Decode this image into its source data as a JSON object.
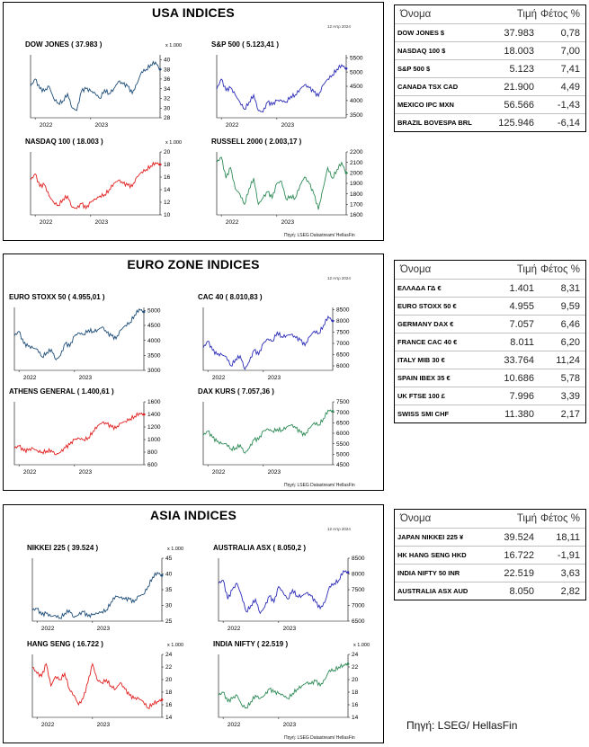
{
  "panels": [
    {
      "title": "USA INDICES",
      "date": "12 Απρ 2024",
      "source": "Πηγή: LSEG Datastream/ HellasFin",
      "top": 2,
      "height": 266
    },
    {
      "title": "EURO ZONE INDICES",
      "date": "12 Απρ 2024",
      "source": "Πηγή: LSEG Datastream/ HellasFin",
      "top": 282,
      "height": 264
    },
    {
      "title": "ASIA INDICES",
      "date": "12 Απρ 2024",
      "source": "Πηγή: LSEG Datastream/ HellasFin",
      "top": 561,
      "height": 266
    }
  ],
  "tables": [
    {
      "header": {
        "name": "Όνομα",
        "price": "Τιμή",
        "ytd": "Φέτος %"
      },
      "rows": [
        {
          "name": "DOW JONES $",
          "price": "37.983",
          "ytd": "0,78"
        },
        {
          "name": "NASDAQ 100 $",
          "price": "18.003",
          "ytd": "7,00"
        },
        {
          "name": "S&P 500 $",
          "price": "5.123",
          "ytd": "7,41"
        },
        {
          "name": "CANADA TSX CAD",
          "price": "21.900",
          "ytd": "4,49"
        },
        {
          "name": "MEXICO IPC MXN",
          "price": "56.566",
          "ytd": "-1,43"
        },
        {
          "name": "BRAZIL BOVESPA BRL",
          "price": "125.946",
          "ytd": "-6,14"
        }
      ]
    },
    {
      "header": {
        "name": "Όνομα",
        "price": "Τιμή",
        "ytd": "Φέτος %"
      },
      "rows": [
        {
          "name": "ΕΛΛΑΔΑ ΓΔ €",
          "price": "1.401",
          "ytd": "8,31"
        },
        {
          "name": "EURO STOXX 50 €",
          "price": "4.955",
          "ytd": "9,59"
        },
        {
          "name": "GERMANY DAX €",
          "price": "7.057",
          "ytd": "6,46"
        },
        {
          "name": "FRANCE CAC 40 €",
          "price": "8.011",
          "ytd": "6,20"
        },
        {
          "name": "ITALY MIB 30 €",
          "price": "33.764",
          "ytd": "11,24"
        },
        {
          "name": "SPAIN IBEX 35 €",
          "price": "10.686",
          "ytd": "5,78"
        },
        {
          "name": "UK FTSE 100 £",
          "price": "7.996",
          "ytd": "3,39"
        },
        {
          "name": "SWISS SMI CHF",
          "price": "11.380",
          "ytd": "2,17"
        }
      ]
    },
    {
      "header": {
        "name": "Όνομα",
        "price": "Τιμή",
        "ytd": "Φέτος %"
      },
      "rows": [
        {
          "name": "JAPAN NIKKEI 225 ¥",
          "price": "39.524",
          "ytd": "18,11"
        },
        {
          "name": "HK HANG SENG HKD",
          "price": "16.722",
          "ytd": "-1,91"
        },
        {
          "name": "INDIA NIFTY 50 INR",
          "price": "22.519",
          "ytd": "3,63"
        },
        {
          "name": "AUSTRALIA ASX AUD",
          "price": "8.050",
          "ytd": "2,82"
        }
      ]
    }
  ],
  "footer_source": "Πηγή: LSEG/ HellasFin",
  "chart_data": [
    {
      "type": "line",
      "title": "DOW JONES ( 37.983 )",
      "unit": "x 1.000",
      "color": "#1f4e79",
      "ylim": [
        28,
        41
      ],
      "yticks": [
        28,
        30,
        32,
        34,
        36,
        38,
        40
      ],
      "xticks": [
        "2022",
        "2023"
      ],
      "x": [
        "2021-10",
        "2022-01",
        "2022-02",
        "2022-03",
        "2022-04",
        "2022-05",
        "2022-06",
        "2022-07",
        "2022-08",
        "2022-09",
        "2022-10",
        "2022-11",
        "2022-12",
        "2023-01",
        "2023-02",
        "2023-03",
        "2023-04",
        "2023-05",
        "2023-06",
        "2023-07",
        "2023-08",
        "2023-09",
        "2023-10",
        "2023-11",
        "2023-12",
        "2024-01",
        "2024-02",
        "2024-03",
        "2024-04"
      ],
      "y": [
        34.5,
        36.0,
        34.0,
        33.5,
        34.5,
        32.0,
        31.0,
        31.5,
        33.0,
        30.0,
        29.5,
        33.5,
        34.0,
        33.5,
        33.0,
        32.0,
        33.8,
        33.0,
        34.0,
        35.5,
        35.0,
        34.5,
        33.0,
        35.0,
        37.5,
        38.0,
        39.0,
        39.5,
        38.0
      ]
    },
    {
      "type": "line",
      "title": "S&P 500 ( 5.123,41 )",
      "unit": "",
      "color": "#2d2db8",
      "ylim": [
        3400,
        5600
      ],
      "yticks": [
        3500,
        4000,
        4500,
        5000,
        5500
      ],
      "xticks": [
        "2022",
        "2023"
      ],
      "x": [
        "2021-10",
        "2022-01",
        "2022-02",
        "2022-03",
        "2022-04",
        "2022-05",
        "2022-06",
        "2022-07",
        "2022-08",
        "2022-09",
        "2022-10",
        "2022-11",
        "2022-12",
        "2023-01",
        "2023-02",
        "2023-03",
        "2023-04",
        "2023-05",
        "2023-06",
        "2023-07",
        "2023-08",
        "2023-09",
        "2023-10",
        "2023-11",
        "2023-12",
        "2024-01",
        "2024-02",
        "2024-03",
        "2024-04"
      ],
      "y": [
        4400,
        4750,
        4350,
        4450,
        4200,
        3950,
        3700,
        3950,
        4200,
        3650,
        3600,
        3950,
        3850,
        4000,
        4000,
        3950,
        4150,
        4200,
        4400,
        4550,
        4450,
        4300,
        4150,
        4550,
        4750,
        4900,
        5100,
        5250,
        5120
      ]
    },
    {
      "type": "line",
      "title": "NASDAQ 100 ( 18.003 )",
      "unit": "x 1.000",
      "color": "#e02020",
      "ylim": [
        10,
        20
      ],
      "yticks": [
        10,
        12,
        14,
        16,
        18,
        20
      ],
      "xticks": [
        "2022",
        "2023"
      ],
      "x": [
        "2021-10",
        "2022-01",
        "2022-02",
        "2022-03",
        "2022-04",
        "2022-05",
        "2022-06",
        "2022-07",
        "2022-08",
        "2022-09",
        "2022-10",
        "2022-11",
        "2022-12",
        "2023-01",
        "2023-02",
        "2023-03",
        "2023-04",
        "2023-05",
        "2023-06",
        "2023-07",
        "2023-08",
        "2023-09",
        "2023-10",
        "2023-11",
        "2023-12",
        "2024-01",
        "2024-02",
        "2024-03",
        "2024-04"
      ],
      "y": [
        15.5,
        16.5,
        14.5,
        14.8,
        13.0,
        12.0,
        11.5,
        12.5,
        13.0,
        11.2,
        11.0,
        11.8,
        11.0,
        12.0,
        12.5,
        13.0,
        13.2,
        14.0,
        15.0,
        15.5,
        15.0,
        14.7,
        14.5,
        16.0,
        16.8,
        17.2,
        17.8,
        18.3,
        18.0
      ]
    },
    {
      "type": "line",
      "title": "RUSSELL 2000 ( 2.003,17 )",
      "unit": "",
      "color": "#2e8b57",
      "ylim": [
        1600,
        2200
      ],
      "yticks": [
        1600,
        1700,
        1800,
        1900,
        2000,
        2100,
        2200
      ],
      "xticks": [
        "2022",
        "2023"
      ],
      "x": [
        "2021-10",
        "2022-01",
        "2022-02",
        "2022-03",
        "2022-04",
        "2022-05",
        "2022-06",
        "2022-07",
        "2022-08",
        "2022-09",
        "2022-10",
        "2022-11",
        "2022-12",
        "2023-01",
        "2023-02",
        "2023-03",
        "2023-04",
        "2023-05",
        "2023-06",
        "2023-07",
        "2023-08",
        "2023-09",
        "2023-10",
        "2023-11",
        "2023-12",
        "2024-01",
        "2024-02",
        "2024-03",
        "2024-04"
      ],
      "y": [
        2100,
        2150,
        1950,
        2050,
        1850,
        1800,
        1700,
        1850,
        1950,
        1700,
        1760,
        1820,
        1760,
        1900,
        1920,
        1750,
        1780,
        1760,
        1880,
        1960,
        1900,
        1800,
        1650,
        1850,
        2050,
        1950,
        2030,
        2100,
        2000
      ]
    },
    {
      "type": "line",
      "title": "EURO STOXX 50 ( 4.955,01 )",
      "unit": "",
      "color": "#1f4e79",
      "ylim": [
        3000,
        5100
      ],
      "yticks": [
        3000,
        3500,
        4000,
        4500,
        5000
      ],
      "xticks": [
        "2022",
        "2023"
      ],
      "x": [
        "2021-10",
        "2022-01",
        "2022-02",
        "2022-03",
        "2022-04",
        "2022-05",
        "2022-06",
        "2022-07",
        "2022-08",
        "2022-09",
        "2022-10",
        "2022-11",
        "2022-12",
        "2023-01",
        "2023-02",
        "2023-03",
        "2023-04",
        "2023-05",
        "2023-06",
        "2023-07",
        "2023-08",
        "2023-09",
        "2023-10",
        "2023-11",
        "2023-12",
        "2024-01",
        "2024-02",
        "2024-03",
        "2024-04"
      ],
      "y": [
        4150,
        4300,
        3900,
        3800,
        3750,
        3700,
        3450,
        3600,
        3700,
        3350,
        3500,
        3900,
        3800,
        4150,
        4250,
        4200,
        4350,
        4300,
        4350,
        4450,
        4250,
        4150,
        4050,
        4350,
        4500,
        4600,
        4850,
        5050,
        4950
      ]
    },
    {
      "type": "line",
      "title": "CAC 40 ( 8.010,83 )",
      "unit": "",
      "color": "#2d2db8",
      "ylim": [
        5800,
        8600
      ],
      "yticks": [
        6000,
        6500,
        7000,
        7500,
        8000,
        8500
      ],
      "xticks": [
        "2022",
        "2023"
      ],
      "x": [
        "2021-10",
        "2022-01",
        "2022-02",
        "2022-03",
        "2022-04",
        "2022-05",
        "2022-06",
        "2022-07",
        "2022-08",
        "2022-09",
        "2022-10",
        "2022-11",
        "2022-12",
        "2023-01",
        "2023-02",
        "2023-03",
        "2023-04",
        "2023-05",
        "2023-06",
        "2023-07",
        "2023-08",
        "2023-09",
        "2023-10",
        "2023-11",
        "2023-12",
        "2024-01",
        "2024-02",
        "2024-03",
        "2024-04"
      ],
      "y": [
        6800,
        7100,
        6700,
        6500,
        6500,
        6400,
        6000,
        6300,
        6450,
        5850,
        6200,
        6700,
        6500,
        7000,
        7200,
        7100,
        7500,
        7300,
        7350,
        7400,
        7250,
        7150,
        6900,
        7300,
        7550,
        7450,
        7800,
        8200,
        8000
      ]
    },
    {
      "type": "line",
      "title": "ATHENS GENERAL ( 1.400,61 )",
      "unit": "",
      "color": "#e02020",
      "ylim": [
        600,
        1600
      ],
      "yticks": [
        600,
        800,
        1000,
        1200,
        1400,
        1600
      ],
      "xticks": [
        "2022",
        "2023"
      ],
      "x": [
        "2021-10",
        "2022-01",
        "2022-02",
        "2022-03",
        "2022-04",
        "2022-05",
        "2022-06",
        "2022-07",
        "2022-08",
        "2022-09",
        "2022-10",
        "2022-11",
        "2022-12",
        "2023-01",
        "2023-02",
        "2023-03",
        "2023-04",
        "2023-05",
        "2023-06",
        "2023-07",
        "2023-08",
        "2023-09",
        "2023-10",
        "2023-11",
        "2023-12",
        "2024-01",
        "2024-02",
        "2024-03",
        "2024-04"
      ],
      "y": [
        860,
        900,
        820,
        830,
        860,
        820,
        800,
        820,
        830,
        760,
        800,
        870,
        920,
        1000,
        1020,
        1000,
        1030,
        1130,
        1220,
        1270,
        1250,
        1200,
        1180,
        1260,
        1290,
        1330,
        1370,
        1420,
        1400
      ]
    },
    {
      "type": "line",
      "title": "DAX KURS ( 7.057,36 )",
      "unit": "",
      "color": "#2e8b57",
      "ylim": [
        4500,
        7500
      ],
      "yticks": [
        4500,
        5000,
        5500,
        6000,
        6500,
        7000,
        7500
      ],
      "xticks": [
        "2022",
        "2023"
      ],
      "x": [
        "2021-10",
        "2022-01",
        "2022-02",
        "2022-03",
        "2022-04",
        "2022-05",
        "2022-06",
        "2022-07",
        "2022-08",
        "2022-09",
        "2022-10",
        "2022-11",
        "2022-12",
        "2023-01",
        "2023-02",
        "2023-03",
        "2023-04",
        "2023-05",
        "2023-06",
        "2023-07",
        "2023-08",
        "2023-09",
        "2023-10",
        "2023-11",
        "2023-12",
        "2024-01",
        "2024-02",
        "2024-03",
        "2024-04"
      ],
      "y": [
        5900,
        6100,
        5800,
        5600,
        5500,
        5500,
        5250,
        5300,
        5450,
        5050,
        5300,
        5700,
        5700,
        6100,
        6200,
        6100,
        6200,
        6150,
        6300,
        6400,
        6250,
        6050,
        5900,
        6250,
        6500,
        6400,
        6700,
        7100,
        7050
      ]
    },
    {
      "type": "line",
      "title": "NIKKEI 225 ( 39.524 )",
      "unit": "x 1.000",
      "color": "#1f4e79",
      "ylim": [
        25,
        45
      ],
      "yticks": [
        25,
        30,
        35,
        40,
        45
      ],
      "xticks": [
        "2022",
        "2023"
      ],
      "x": [
        "2021-10",
        "2022-01",
        "2022-02",
        "2022-03",
        "2022-04",
        "2022-05",
        "2022-06",
        "2022-07",
        "2022-08",
        "2022-09",
        "2022-10",
        "2022-11",
        "2022-12",
        "2023-01",
        "2023-02",
        "2023-03",
        "2023-04",
        "2023-05",
        "2023-06",
        "2023-07",
        "2023-08",
        "2023-09",
        "2023-10",
        "2023-11",
        "2023-12",
        "2024-01",
        "2024-02",
        "2024-03",
        "2024-04"
      ],
      "y": [
        28.5,
        29.0,
        27.0,
        27.5,
        26.5,
        26.8,
        26.0,
        27.5,
        28.5,
        26.2,
        27.0,
        28.0,
        26.5,
        27.0,
        27.5,
        28.0,
        28.5,
        31.0,
        33.0,
        32.5,
        32.0,
        32.0,
        31.0,
        33.0,
        33.5,
        36.0,
        39.0,
        40.5,
        39.5
      ]
    },
    {
      "type": "line",
      "title": "AUSTRALIA ASX ( 8.050,2 )",
      "unit": "",
      "color": "#2d2db8",
      "ylim": [
        6500,
        8500
      ],
      "yticks": [
        6500,
        7000,
        7500,
        8000,
        8500
      ],
      "xticks": [
        "2022",
        "2023"
      ],
      "x": [
        "2021-10",
        "2022-01",
        "2022-02",
        "2022-03",
        "2022-04",
        "2022-05",
        "2022-06",
        "2022-07",
        "2022-08",
        "2022-09",
        "2022-10",
        "2022-11",
        "2022-12",
        "2023-01",
        "2023-02",
        "2023-03",
        "2023-04",
        "2023-05",
        "2023-06",
        "2023-07",
        "2023-08",
        "2023-09",
        "2023-10",
        "2023-11",
        "2023-12",
        "2024-01",
        "2024-02",
        "2024-03",
        "2024-04"
      ],
      "y": [
        7700,
        7800,
        7200,
        7500,
        7700,
        7300,
        6800,
        7000,
        7200,
        6750,
        6950,
        7300,
        7100,
        7600,
        7400,
        7200,
        7500,
        7300,
        7300,
        7400,
        7300,
        7100,
        6900,
        7100,
        7600,
        7700,
        7800,
        8100,
        8050
      ]
    },
    {
      "type": "line",
      "title": "HANG SENG ( 16.722 )",
      "unit": "x 1.000",
      "color": "#e02020",
      "ylim": [
        14,
        24
      ],
      "yticks": [
        14,
        16,
        18,
        20,
        22,
        24
      ],
      "xticks": [
        "2022",
        "2023"
      ],
      "x": [
        "2021-10",
        "2022-01",
        "2022-02",
        "2022-03",
        "2022-04",
        "2022-05",
        "2022-06",
        "2022-07",
        "2022-08",
        "2022-09",
        "2022-10",
        "2022-11",
        "2022-12",
        "2023-01",
        "2023-02",
        "2023-03",
        "2023-04",
        "2023-05",
        "2023-06",
        "2023-07",
        "2023-08",
        "2023-09",
        "2023-10",
        "2023-11",
        "2023-12",
        "2024-01",
        "2024-02",
        "2024-03",
        "2024-04"
      ],
      "y": [
        22.0,
        21.0,
        20.5,
        22.5,
        19.0,
        20.5,
        20.0,
        21.0,
        18.5,
        17.5,
        16.0,
        17.0,
        19.5,
        22.5,
        20.0,
        19.5,
        20.0,
        19.0,
        18.5,
        19.5,
        18.5,
        17.5,
        17.0,
        17.0,
        16.5,
        15.5,
        16.2,
        16.5,
        16.8
      ]
    },
    {
      "type": "line",
      "title": "INDIA NIFTY ( 22.519 )",
      "unit": "x 1.000",
      "color": "#2e8b57",
      "ylim": [
        14,
        24
      ],
      "yticks": [
        14,
        16,
        18,
        20,
        22,
        24
      ],
      "xticks": [
        "2022",
        "2023"
      ],
      "x": [
        "2021-10",
        "2022-01",
        "2022-02",
        "2022-03",
        "2022-04",
        "2022-05",
        "2022-06",
        "2022-07",
        "2022-08",
        "2022-09",
        "2022-10",
        "2022-11",
        "2022-12",
        "2023-01",
        "2023-02",
        "2023-03",
        "2023-04",
        "2023-05",
        "2023-06",
        "2023-07",
        "2023-08",
        "2023-09",
        "2023-10",
        "2023-11",
        "2023-12",
        "2024-01",
        "2024-02",
        "2024-03",
        "2024-04"
      ],
      "y": [
        17.5,
        18.0,
        16.5,
        17.0,
        17.5,
        16.0,
        15.5,
        16.5,
        17.5,
        17.0,
        17.5,
        18.5,
        18.0,
        17.8,
        17.5,
        17.0,
        17.8,
        18.5,
        19.0,
        19.5,
        19.3,
        19.8,
        19.0,
        20.0,
        21.5,
        21.5,
        22.0,
        22.3,
        22.5
      ]
    }
  ]
}
